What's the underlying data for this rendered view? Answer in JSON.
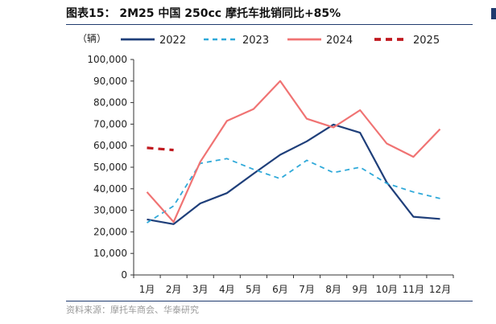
{
  "header": {
    "title": "图表15： 2M25 中国 250cc 摩托车批销同比+85%"
  },
  "footer": {
    "source": "资料来源：摩托车商会、华泰研究"
  },
  "chart_data": {
    "type": "line",
    "unit_label": "（辆）",
    "categories": [
      "1月",
      "2月",
      "3月",
      "4月",
      "5月",
      "6月",
      "7月",
      "8月",
      "9月",
      "10月",
      "11月",
      "12月"
    ],
    "ylim": [
      0,
      100000
    ],
    "yticks": [
      0,
      10000,
      20000,
      30000,
      40000,
      50000,
      60000,
      70000,
      80000,
      90000,
      100000
    ],
    "ytick_labels": [
      "0",
      "10,000",
      "20,000",
      "30,000",
      "40,000",
      "50,000",
      "60,000",
      "70,000",
      "80,000",
      "90,000",
      "100,000"
    ],
    "grid": false,
    "legend_position": "top",
    "series": [
      {
        "name": "2022",
        "color": "#1f3f7a",
        "style": "solid",
        "values": [
          25800,
          23600,
          33200,
          38000,
          47000,
          55800,
          62000,
          69800,
          66000,
          43000,
          27000,
          26000
        ]
      },
      {
        "name": "2023",
        "color": "#2fa9d9",
        "style": "dashed",
        "values": [
          24200,
          32000,
          51800,
          54000,
          49000,
          44700,
          53200,
          47500,
          50000,
          42500,
          38500,
          35500
        ]
      },
      {
        "name": "2024",
        "color": "#f07373",
        "style": "solid",
        "values": [
          38500,
          24600,
          52500,
          71500,
          77000,
          90000,
          72500,
          68500,
          76500,
          61000,
          54800,
          67700
        ]
      },
      {
        "name": "2025",
        "color": "#c0191f",
        "style": "dashed-bold",
        "values": [
          59000,
          58000,
          null,
          null,
          null,
          null,
          null,
          null,
          null,
          null,
          null,
          null
        ]
      }
    ]
  }
}
